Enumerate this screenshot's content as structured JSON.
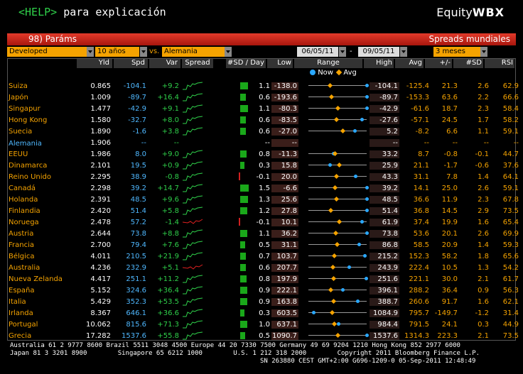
{
  "top": {
    "help_key": "<HELP>",
    "help_text": "para explicación",
    "brand_prefix": "Equity",
    "brand_suffix": "WBX"
  },
  "titlebar": {
    "left": "98) Paráms",
    "right": "Spreads mundiales"
  },
  "controls": {
    "group": "Developed",
    "tenor": "10 años",
    "vs_label": "vs.",
    "benchmark": "Alemania",
    "date_from": "06/05/11",
    "date_sep": "-",
    "date_to": "09/05/11",
    "period": "3 meses"
  },
  "headers": {
    "yld": "Yld",
    "spd": "Spd",
    "var": "Var",
    "spread": "Spread",
    "sd_day": "#SD / Day",
    "low": "Low",
    "range": "Range",
    "high": "High",
    "avg": "Avg",
    "pm": "+/-",
    "sd": "#SD",
    "rsi": "RSI"
  },
  "legend": {
    "now": "Now",
    "avg": "Avg"
  },
  "colors": {
    "accent": "#f5a300",
    "positive": "#2fd04a",
    "cyan": "#4fb8ff",
    "title_red": "#c8201a"
  },
  "rows": [
    {
      "country": "Suiza",
      "yld": "0.865",
      "spd": "-104.1",
      "var": "+9.2",
      "sd": "1.1",
      "low": "-138.0",
      "high": "-104.1",
      "avg": "-125.4",
      "pm": "21.3",
      "sdn": "2.6",
      "rsi": "62.9",
      "bar": 0.9,
      "now": 1.0,
      "avgp": 0.36
    },
    {
      "country": "Japón",
      "yld": "1.009",
      "spd": "-89.7",
      "var": "+16.4",
      "sd": "0.6",
      "low": "-193.6",
      "high": "-89.7",
      "avg": "-153.3",
      "pm": "63.6",
      "sdn": "2.2",
      "rsi": "66.6",
      "bar": 0.5,
      "now": 1.0,
      "avgp": 0.39
    },
    {
      "country": "Singapur",
      "yld": "1.477",
      "spd": "-42.9",
      "var": "+9.1",
      "sd": "1.1",
      "low": "-80.3",
      "high": "-42.9",
      "avg": "-61.6",
      "pm": "18.7",
      "sdn": "2.3",
      "rsi": "58.4",
      "bar": 0.9,
      "now": 1.0,
      "avgp": 0.5
    },
    {
      "country": "Hong Kong",
      "yld": "1.580",
      "spd": "-32.7",
      "var": "+8.0",
      "sd": "0.6",
      "low": "-83.5",
      "high": "-27.6",
      "avg": "-57.1",
      "pm": "24.5",
      "sdn": "1.7",
      "rsi": "58.2",
      "bar": 0.5,
      "now": 0.91,
      "avgp": 0.47
    },
    {
      "country": "Suecia",
      "yld": "1.890",
      "spd": "-1.6",
      "var": "+3.8",
      "sd": "0.6",
      "low": "-27.0",
      "high": "5.2",
      "avg": "-8.2",
      "pm": "6.6",
      "sdn": "1.1",
      "rsi": "59.1",
      "bar": 0.5,
      "now": 0.79,
      "avgp": 0.58
    },
    {
      "country": "Alemania",
      "yld": "1.906",
      "spd": "--",
      "var": "--",
      "sd": "--",
      "low": "--",
      "high": "--",
      "avg": "--",
      "pm": "--",
      "sdn": "--",
      "rsi": "--",
      "bar": 0,
      "now": null,
      "avgp": null,
      "selected": true
    },
    {
      "country": "EEUU",
      "yld": "1.986",
      "spd": "8.0",
      "var": "+9.0",
      "sd": "0.8",
      "low": "-11.3",
      "high": "33.2",
      "avg": "8.7",
      "pm": "-0.8",
      "sdn": "-0.1",
      "rsi": "44.7",
      "bar": 0.65,
      "now": 0.43,
      "avgp": 0.45
    },
    {
      "country": "Dinamarca",
      "yld": "2.101",
      "spd": "19.5",
      "var": "+0.9",
      "sd": "0.3",
      "low": "15.8",
      "high": "25.9",
      "avg": "21.1",
      "pm": "-1.7",
      "sdn": "-0.6",
      "rsi": "37.6",
      "bar": 0.25,
      "now": 0.37,
      "avgp": 0.52
    },
    {
      "country": "Reino Unido",
      "yld": "2.295",
      "spd": "38.9",
      "var": "-0.8",
      "sd": "-0.1",
      "low": "20.0",
      "high": "43.3",
      "avg": "31.1",
      "pm": "7.8",
      "sdn": "1.4",
      "rsi": "64.1",
      "bar": 0,
      "now": 0.81,
      "avgp": 0.48,
      "neg": true
    },
    {
      "country": "Canadá",
      "yld": "2.298",
      "spd": "39.2",
      "var": "+14.7",
      "sd": "1.5",
      "low": "-6.6",
      "high": "39.2",
      "avg": "14.1",
      "pm": "25.0",
      "sdn": "2.6",
      "rsi": "59.1",
      "bar": 1.0,
      "now": 1.0,
      "avgp": 0.45
    },
    {
      "country": "Holanda",
      "yld": "2.391",
      "spd": "48.5",
      "var": "+9.6",
      "sd": "1.3",
      "low": "25.6",
      "high": "48.5",
      "avg": "36.6",
      "pm": "11.9",
      "sdn": "2.3",
      "rsi": "67.8",
      "bar": 0.85,
      "now": 1.0,
      "avgp": 0.48
    },
    {
      "country": "Finlandia",
      "yld": "2.420",
      "spd": "51.4",
      "var": "+5.8",
      "sd": "1.2",
      "low": "27.8",
      "high": "51.4",
      "avg": "36.8",
      "pm": "14.5",
      "sdn": "2.9",
      "rsi": "73.5",
      "bar": 0.8,
      "now": 1.0,
      "avgp": 0.38
    },
    {
      "country": "Noruega",
      "yld": "2.478",
      "spd": "57.2",
      "var": "-1.4",
      "sd": "-0.1",
      "low": "10.1",
      "high": "61.9",
      "avg": "37.4",
      "pm": "19.9",
      "sdn": "1.6",
      "rsi": "65.4",
      "bar": 0,
      "now": 0.91,
      "avgp": 0.53,
      "neg": true,
      "redspark": true
    },
    {
      "country": "Austria",
      "yld": "2.644",
      "spd": "73.8",
      "var": "+8.8",
      "sd": "1.1",
      "low": "36.2",
      "high": "73.8",
      "avg": "53.6",
      "pm": "20.1",
      "sdn": "2.6",
      "rsi": "69.9",
      "bar": 0.75,
      "now": 1.0,
      "avgp": 0.46
    },
    {
      "country": "Francia",
      "yld": "2.700",
      "spd": "79.4",
      "var": "+7.6",
      "sd": "0.5",
      "low": "31.1",
      "high": "86.8",
      "avg": "58.5",
      "pm": "20.9",
      "sdn": "1.4",
      "rsi": "59.3",
      "bar": 0.4,
      "now": 0.87,
      "avgp": 0.49
    },
    {
      "country": "Bélgica",
      "yld": "4.011",
      "spd": "210.5",
      "var": "+21.9",
      "sd": "0.7",
      "low": "103.7",
      "high": "215.2",
      "avg": "152.3",
      "pm": "58.2",
      "sdn": "1.8",
      "rsi": "65.6",
      "bar": 0.55,
      "now": 0.96,
      "avgp": 0.44
    },
    {
      "country": "Australia",
      "yld": "4.236",
      "spd": "232.9",
      "var": "+5.1",
      "sd": "0.6",
      "low": "207.7",
      "high": "243.9",
      "avg": "222.4",
      "pm": "10.5",
      "sdn": "1.3",
      "rsi": "54.2",
      "bar": 0.5,
      "now": 0.7,
      "avgp": 0.41,
      "redspark": true
    },
    {
      "country": "Nueva Zelanda",
      "yld": "4.417",
      "spd": "251.1",
      "var": "+11.2",
      "sd": "0.8",
      "low": "197.9",
      "high": "251.6",
      "avg": "221.1",
      "pm": "30.0",
      "sdn": "2.1",
      "rsi": "61.7",
      "bar": 0.65,
      "now": 0.99,
      "avgp": 0.43
    },
    {
      "country": "España",
      "yld": "5.152",
      "spd": "324.6",
      "var": "+36.4",
      "sd": "0.9",
      "low": "222.1",
      "high": "396.1",
      "avg": "288.2",
      "pm": "36.4",
      "sdn": "0.9",
      "rsi": "56.3",
      "bar": 0.7,
      "now": 0.59,
      "avgp": 0.38
    },
    {
      "country": "Italia",
      "yld": "5.429",
      "spd": "352.3",
      "var": "+53.5",
      "sd": "0.9",
      "low": "163.8",
      "high": "388.7",
      "avg": "260.6",
      "pm": "91.7",
      "sdn": "1.6",
      "rsi": "62.1",
      "bar": 0.7,
      "now": 0.84,
      "avgp": 0.43
    },
    {
      "country": "Irlanda",
      "yld": "8.367",
      "spd": "646.1",
      "var": "+36.6",
      "sd": "0.3",
      "low": "603.5",
      "high": "1084.9",
      "avg": "795.7",
      "pm": "-149.7",
      "sdn": "-1.2",
      "rsi": "31.4",
      "bar": 0.25,
      "now": 0.09,
      "avgp": 0.4
    },
    {
      "country": "Portugal",
      "yld": "10.062",
      "spd": "815.6",
      "var": "+71.3",
      "sd": "1.0",
      "low": "637.1",
      "high": "984.4",
      "avg": "791.5",
      "pm": "24.1",
      "sdn": "0.3",
      "rsi": "44.9",
      "bar": 0.8,
      "now": 0.51,
      "avgp": 0.44
    },
    {
      "country": "Grecia",
      "yld": "17.282",
      "spd": "1537.6",
      "var": "+55.8",
      "sd": "0.5",
      "low": "1090.7",
      "high": "1537.6",
      "avg": "1314.3",
      "pm": "223.3",
      "sdn": "2.1",
      "rsi": "73.5",
      "bar": 0.4,
      "now": 1.0,
      "avgp": 0.5
    }
  ],
  "footer": {
    "line1": "Australia 61 2 9777 8600 Brazil 5511 3048 4500 Europe 44 20 7330 7500 Germany 49 69 9204 1210 Hong Kong 852 2977 6000",
    "line2": "Japan 81 3 3201 8900        Singapore 65 6212 1000        U.S. 1 212 318 2000        Copyright 2011 Bloomberg Finance L.P.",
    "line3": "SN 263880 CEST GMT+2:00 G696-1209-0 05-Sep-2011 12:48:49"
  }
}
